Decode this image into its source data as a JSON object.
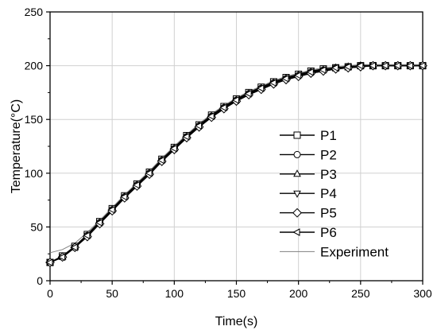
{
  "chart_data": {
    "type": "line",
    "title": "",
    "xlabel": "Time(s)",
    "ylabel": "Temperature(°C)",
    "xlim": [
      0,
      300
    ],
    "ylim": [
      0,
      250
    ],
    "x_ticks": [
      0,
      50,
      100,
      150,
      200,
      250,
      300
    ],
    "y_ticks": [
      0,
      50,
      100,
      150,
      200,
      250
    ],
    "x_tick_labels": [
      "0",
      "50",
      "100",
      "150",
      "200",
      "250",
      "300"
    ],
    "y_tick_labels": [
      "0",
      "50",
      "100",
      "150",
      "200",
      "250"
    ],
    "grid": true,
    "legend_position": "right",
    "series": [
      {
        "name": "P1",
        "marker": "square",
        "color": "#000000",
        "x": [
          0,
          10,
          20,
          30,
          40,
          50,
          60,
          70,
          80,
          90,
          100,
          110,
          120,
          130,
          140,
          150,
          160,
          170,
          180,
          190,
          200,
          210,
          220,
          230,
          240,
          250,
          260,
          270,
          280,
          290,
          300
        ],
        "y": [
          17,
          23,
          32,
          43,
          55,
          67,
          79,
          90,
          101,
          113,
          124,
          135,
          145,
          154,
          162,
          169,
          175,
          180,
          185,
          189,
          192,
          195,
          197,
          198,
          199,
          200,
          200,
          200,
          200,
          200,
          200
        ]
      },
      {
        "name": "P2",
        "marker": "circle",
        "color": "#000000",
        "x": [
          0,
          10,
          20,
          30,
          40,
          50,
          60,
          70,
          80,
          90,
          100,
          110,
          120,
          130,
          140,
          150,
          160,
          170,
          180,
          190,
          200,
          210,
          220,
          230,
          240,
          250,
          260,
          270,
          280,
          290,
          300
        ],
        "y": [
          17,
          22,
          31,
          42,
          54,
          66,
          78,
          89,
          100,
          112,
          123,
          134,
          144,
          153,
          161,
          168,
          174,
          179,
          184,
          188,
          191,
          194,
          196,
          198,
          199,
          200,
          200,
          200,
          200,
          200,
          200
        ]
      },
      {
        "name": "P3",
        "marker": "triangle-up",
        "color": "#000000",
        "x": [
          0,
          10,
          20,
          30,
          40,
          50,
          60,
          70,
          80,
          90,
          100,
          110,
          120,
          130,
          140,
          150,
          160,
          170,
          180,
          190,
          200,
          210,
          220,
          230,
          240,
          250,
          260,
          270,
          280,
          290,
          300
        ],
        "y": [
          17,
          22,
          31,
          42,
          54,
          66,
          78,
          89,
          100,
          112,
          123,
          134,
          144,
          153,
          161,
          168,
          174,
          179,
          184,
          188,
          191,
          194,
          196,
          198,
          199,
          200,
          200,
          200,
          200,
          200,
          200
        ]
      },
      {
        "name": "P4",
        "marker": "triangle-down",
        "color": "#000000",
        "x": [
          0,
          10,
          20,
          30,
          40,
          50,
          60,
          70,
          80,
          90,
          100,
          110,
          120,
          130,
          140,
          150,
          160,
          170,
          180,
          190,
          200,
          210,
          220,
          230,
          240,
          250,
          260,
          270,
          280,
          290,
          300
        ],
        "y": [
          17,
          22,
          31,
          42,
          53,
          65,
          77,
          88,
          99,
          111,
          122,
          133,
          143,
          152,
          160,
          167,
          173,
          178,
          183,
          187,
          190,
          193,
          195,
          197,
          198,
          199,
          200,
          200,
          200,
          200,
          200
        ]
      },
      {
        "name": "P5",
        "marker": "diamond",
        "color": "#000000",
        "x": [
          0,
          10,
          20,
          30,
          40,
          50,
          60,
          70,
          80,
          90,
          100,
          110,
          120,
          130,
          140,
          150,
          160,
          170,
          180,
          190,
          200,
          210,
          220,
          230,
          240,
          250,
          260,
          270,
          280,
          290,
          300
        ],
        "y": [
          17,
          22,
          31,
          41,
          53,
          65,
          77,
          88,
          99,
          111,
          122,
          133,
          143,
          152,
          160,
          167,
          173,
          178,
          183,
          187,
          190,
          193,
          195,
          197,
          198,
          199,
          200,
          200,
          200,
          200,
          200
        ]
      },
      {
        "name": "P6",
        "marker": "triangle-left",
        "color": "#000000",
        "x": [
          0,
          10,
          20,
          30,
          40,
          50,
          60,
          70,
          80,
          90,
          100,
          110,
          120,
          130,
          140,
          150,
          160,
          170,
          180,
          190,
          200,
          210,
          220,
          230,
          240,
          250,
          260,
          270,
          280,
          290,
          300
        ],
        "y": [
          17,
          22,
          31,
          42,
          54,
          66,
          78,
          89,
          100,
          112,
          123,
          134,
          144,
          153,
          161,
          168,
          174,
          179,
          184,
          188,
          191,
          194,
          196,
          198,
          199,
          200,
          200,
          200,
          200,
          200,
          200
        ]
      },
      {
        "name": "Experiment",
        "marker": "none",
        "color": "#808080",
        "x": [
          0,
          10,
          20,
          30,
          40,
          50,
          60,
          70,
          80,
          90,
          100,
          110,
          120,
          130,
          140,
          150,
          160,
          170,
          180,
          190,
          200,
          210,
          220,
          230,
          240,
          250,
          260,
          270,
          280,
          290,
          300
        ],
        "y": [
          26,
          29,
          35,
          45,
          56,
          68,
          80,
          91,
          102,
          114,
          125,
          136,
          146,
          155,
          163,
          170,
          176,
          181,
          186,
          190,
          193,
          196,
          198,
          199,
          200,
          201,
          201,
          201,
          201,
          201,
          201
        ]
      }
    ]
  }
}
